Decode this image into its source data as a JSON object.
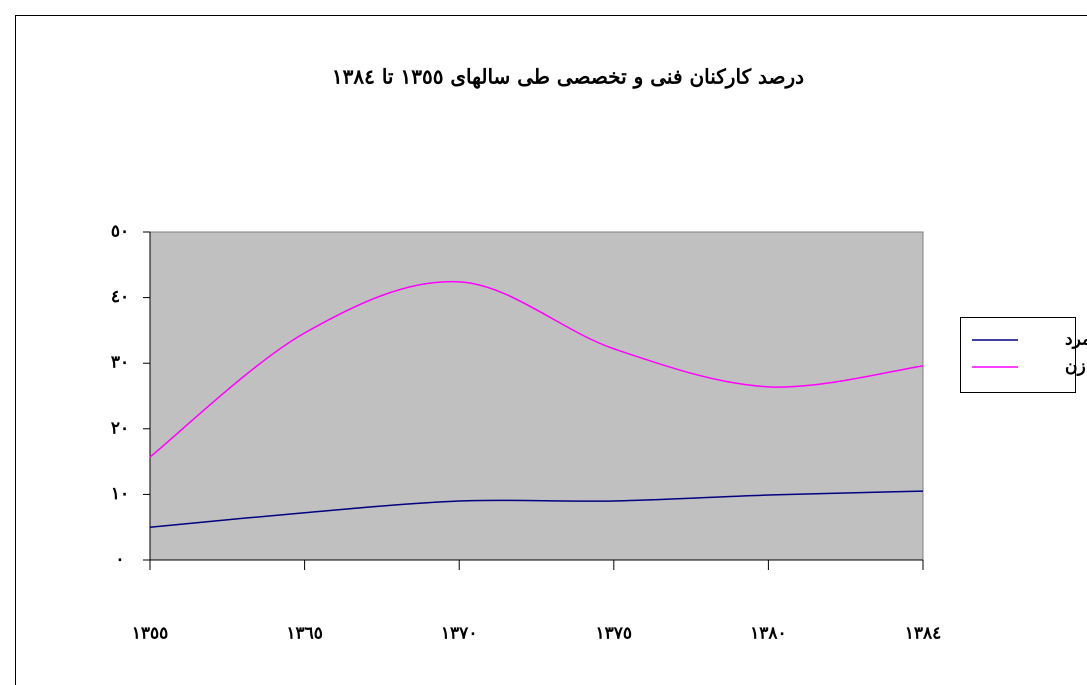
{
  "chart_data": {
    "type": "line",
    "title": "درصد کارکنان فنی و تخصصی طی سالهای ١٣٥٥ تا ١٣٨٤",
    "categories": [
      "١٣٥٥",
      "١٣٦٥",
      "١٣٧٠",
      "١٣٧٥",
      "١٣٨٠",
      "١٣٨٤"
    ],
    "series": [
      {
        "name": "مرد",
        "color": "#000080",
        "values": [
          5.0,
          7.2,
          9.0,
          9.0,
          9.9,
          10.5
        ]
      },
      {
        "name": "زن",
        "color": "#ff00ff",
        "values": [
          15.7,
          34.6,
          42.4,
          32.2,
          26.4,
          29.6
        ]
      }
    ],
    "ylim": [
      0,
      50
    ],
    "yticks": [
      {
        "value": 0,
        "label": "٠"
      },
      {
        "value": 10,
        "label": "١٠"
      },
      {
        "value": 20,
        "label": "٢٠"
      },
      {
        "value": 30,
        "label": "٣٠"
      },
      {
        "value": 40,
        "label": "٤٠"
      },
      {
        "value": 50,
        "label": "٥٠"
      }
    ],
    "legend": "right"
  }
}
